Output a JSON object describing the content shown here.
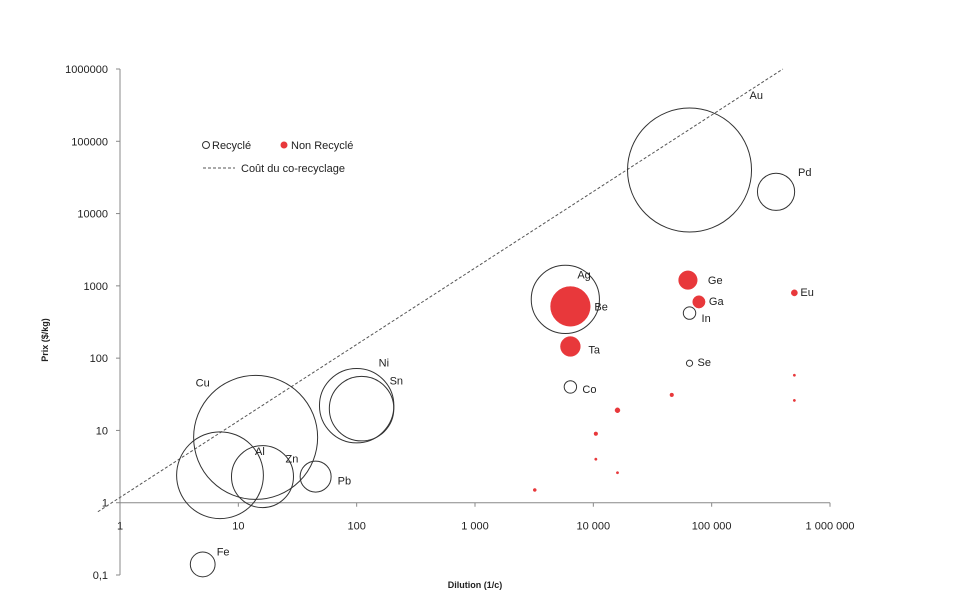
{
  "chart_data": {
    "type": "scatter",
    "xlabel": "Dilution (1/c)",
    "ylabel": "Prix ($/kg)",
    "x_scale": "log",
    "y_scale": "log",
    "xlim": [
      1,
      1000000
    ],
    "ylim": [
      0.1,
      1000000
    ],
    "x_ticks": [
      {
        "value": 1,
        "label": "1"
      },
      {
        "value": 10,
        "label": "10"
      },
      {
        "value": 100,
        "label": "100"
      },
      {
        "value": 1000,
        "label": "1 000"
      },
      {
        "value": 10000,
        "label": "10 000"
      },
      {
        "value": 100000,
        "label": "100 000"
      },
      {
        "value": 1000000,
        "label": "1 000 000"
      }
    ],
    "y_ticks": [
      {
        "value": 0.1,
        "label": "0,1"
      },
      {
        "value": 1,
        "label": "1"
      },
      {
        "value": 10,
        "label": "10"
      },
      {
        "value": 100,
        "label": "100"
      },
      {
        "value": 1000,
        "label": "1000"
      },
      {
        "value": 10000,
        "label": "10000"
      },
      {
        "value": 100000,
        "label": "100000"
      },
      {
        "value": 1000000,
        "label": "1000000"
      }
    ],
    "legend": {
      "placement": "top-left",
      "entries": [
        {
          "label": "Recyclé",
          "marker": "open-circle"
        },
        {
          "label": "Non Recyclé",
          "marker": "filled-circle"
        },
        {
          "label": "Coût du co-recyclage",
          "marker": "dashed-line"
        }
      ]
    },
    "colors": {
      "recycled": "#333333",
      "non_recycled": "#e8383b",
      "line": "#555555"
    },
    "trend_line": {
      "name": "Coût du co-recyclage",
      "points": [
        [
          0.65,
          0.75
        ],
        [
          400000,
          1000000
        ]
      ]
    },
    "series": [
      {
        "name": "Recyclé",
        "points": [
          {
            "label": "Au",
            "x": 65000,
            "y": 40000,
            "r": 1.0
          },
          {
            "label": "Pd",
            "x": 350000,
            "y": 20000,
            "r": 0.3
          },
          {
            "label": "Ag",
            "x": 5800,
            "y": 650,
            "r": 0.55
          },
          {
            "label": "In",
            "x": 65000,
            "y": 420,
            "r": 0.1
          },
          {
            "label": "Se",
            "x": 65000,
            "y": 85,
            "r": 0.05
          },
          {
            "label": "Co",
            "x": 6400,
            "y": 40,
            "r": 0.1
          },
          {
            "label": "Ni",
            "x": 100,
            "y": 22,
            "r": 0.6
          },
          {
            "label": "Sn",
            "x": 110,
            "y": 20,
            "r": 0.52
          },
          {
            "label": "Cu",
            "x": 14,
            "y": 8,
            "r": 1.0
          },
          {
            "label": "Al",
            "x": 7,
            "y": 2.4,
            "r": 0.7
          },
          {
            "label": "Zn",
            "x": 16,
            "y": 2.3,
            "r": 0.5
          },
          {
            "label": "Pb",
            "x": 45,
            "y": 2.3,
            "r": 0.25
          },
          {
            "label": "Fe",
            "x": 5,
            "y": 0.14,
            "r": 0.2
          }
        ]
      },
      {
        "name": "Non Recyclé",
        "points": [
          {
            "label": "Be",
            "x": 6400,
            "y": 520,
            "r": 0.32
          },
          {
            "label": "Ta",
            "x": 6400,
            "y": 145,
            "r": 0.16
          },
          {
            "label": "Ge",
            "x": 63000,
            "y": 1200,
            "r": 0.15
          },
          {
            "label": "Ga",
            "x": 78000,
            "y": 600,
            "r": 0.1
          },
          {
            "label": "Eu",
            "x": 500000,
            "y": 800,
            "r": 0.05
          },
          {
            "label": "",
            "x": 16000,
            "y": 19,
            "r": 0.04
          },
          {
            "label": "",
            "x": 46000,
            "y": 31,
            "r": 0.03
          },
          {
            "label": "",
            "x": 10500,
            "y": 9,
            "r": 0.03
          },
          {
            "label": "",
            "x": 10500,
            "y": 4,
            "r": 0.02
          },
          {
            "label": "",
            "x": 16000,
            "y": 2.6,
            "r": 0.015
          },
          {
            "label": "",
            "x": 3200,
            "y": 1.5,
            "r": 0.025
          },
          {
            "label": "",
            "x": 500000,
            "y": 58,
            "r": 0.015
          },
          {
            "label": "",
            "x": 500000,
            "y": 26,
            "r": 0.01
          }
        ]
      }
    ]
  }
}
